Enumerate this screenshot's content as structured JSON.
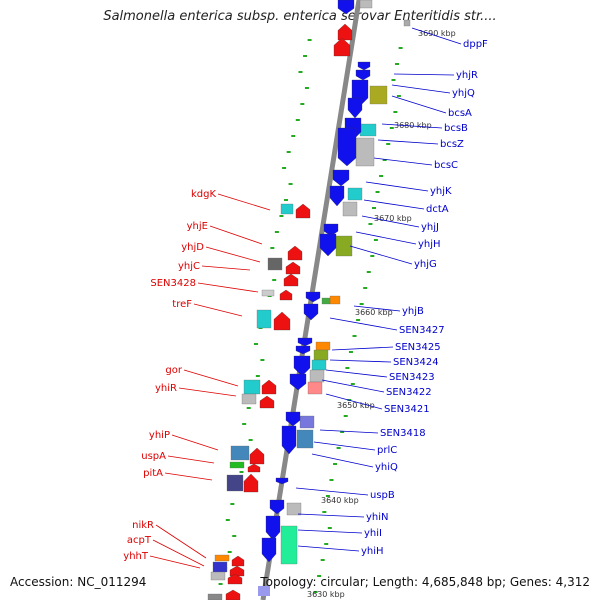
{
  "title": "Salmonella enterica subsp. enterica serovar Enteritidis str....",
  "footer": {
    "accession": "Accession: NC_011294",
    "topology": "Topology: circular; Length: 4,685,848 bp; Genes: 4,312"
  },
  "colors": {
    "forward_label": "#0000cc",
    "reverse_label": "#dd0000",
    "backbone": "#888888"
  },
  "kbp_marks": [
    "3690 kbp",
    "3680 kbp",
    "3670 kbp",
    "3660 kbp",
    "3650 kbp",
    "3640 kbp",
    "3630 kbp"
  ],
  "forward_genes": [
    "dppF",
    "yhjR",
    "yhjQ",
    "bcsA",
    "bcsB",
    "bcsZ",
    "bcsC",
    "yhjK",
    "dctA",
    "yhjJ",
    "yhjH",
    "yhjG",
    "yhjB",
    "SEN3427",
    "SEN3425",
    "SEN3424",
    "SEN3423",
    "SEN3422",
    "SEN3421",
    "SEN3418",
    "prlC",
    "yhiQ",
    "uspB",
    "yhiN",
    "yhiI",
    "yhiH"
  ],
  "reverse_genes": [
    "kdgK",
    "yhjE",
    "yhjD",
    "yhjC",
    "SEN3428",
    "treF",
    "gor",
    "yhiR",
    "yhiP",
    "uspA",
    "pitA",
    "nikR",
    "acpT",
    "yhhT"
  ]
}
